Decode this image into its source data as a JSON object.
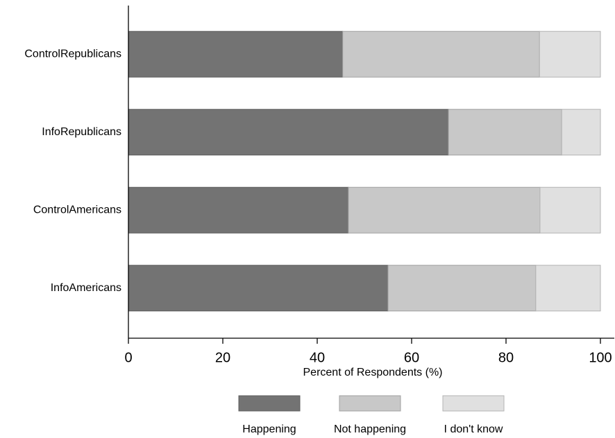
{
  "chart_data": {
    "type": "stacked-bar-horizontal",
    "x_label": "Percent of Respondents (%)",
    "categories": [
      "ControlRepublicans",
      "InfoRepublicans",
      "ControlAmericans",
      "InfoAmericans"
    ],
    "series": [
      {
        "name": "Happening",
        "color": "#737373",
        "values": [
          45.4,
          67.8,
          46.6,
          55.0
        ]
      },
      {
        "name": "Not happening",
        "color": "#c8c8c8",
        "values": [
          41.7,
          24.0,
          40.6,
          31.3
        ]
      },
      {
        "name": "I don't know",
        "color": "#e0e0e0",
        "values": [
          12.9,
          8.2,
          12.8,
          13.7
        ]
      }
    ],
    "xlim": [
      0,
      100
    ],
    "xticks": [
      0,
      20,
      40,
      60,
      80,
      100
    ],
    "legend": "bottom",
    "grid": false
  }
}
